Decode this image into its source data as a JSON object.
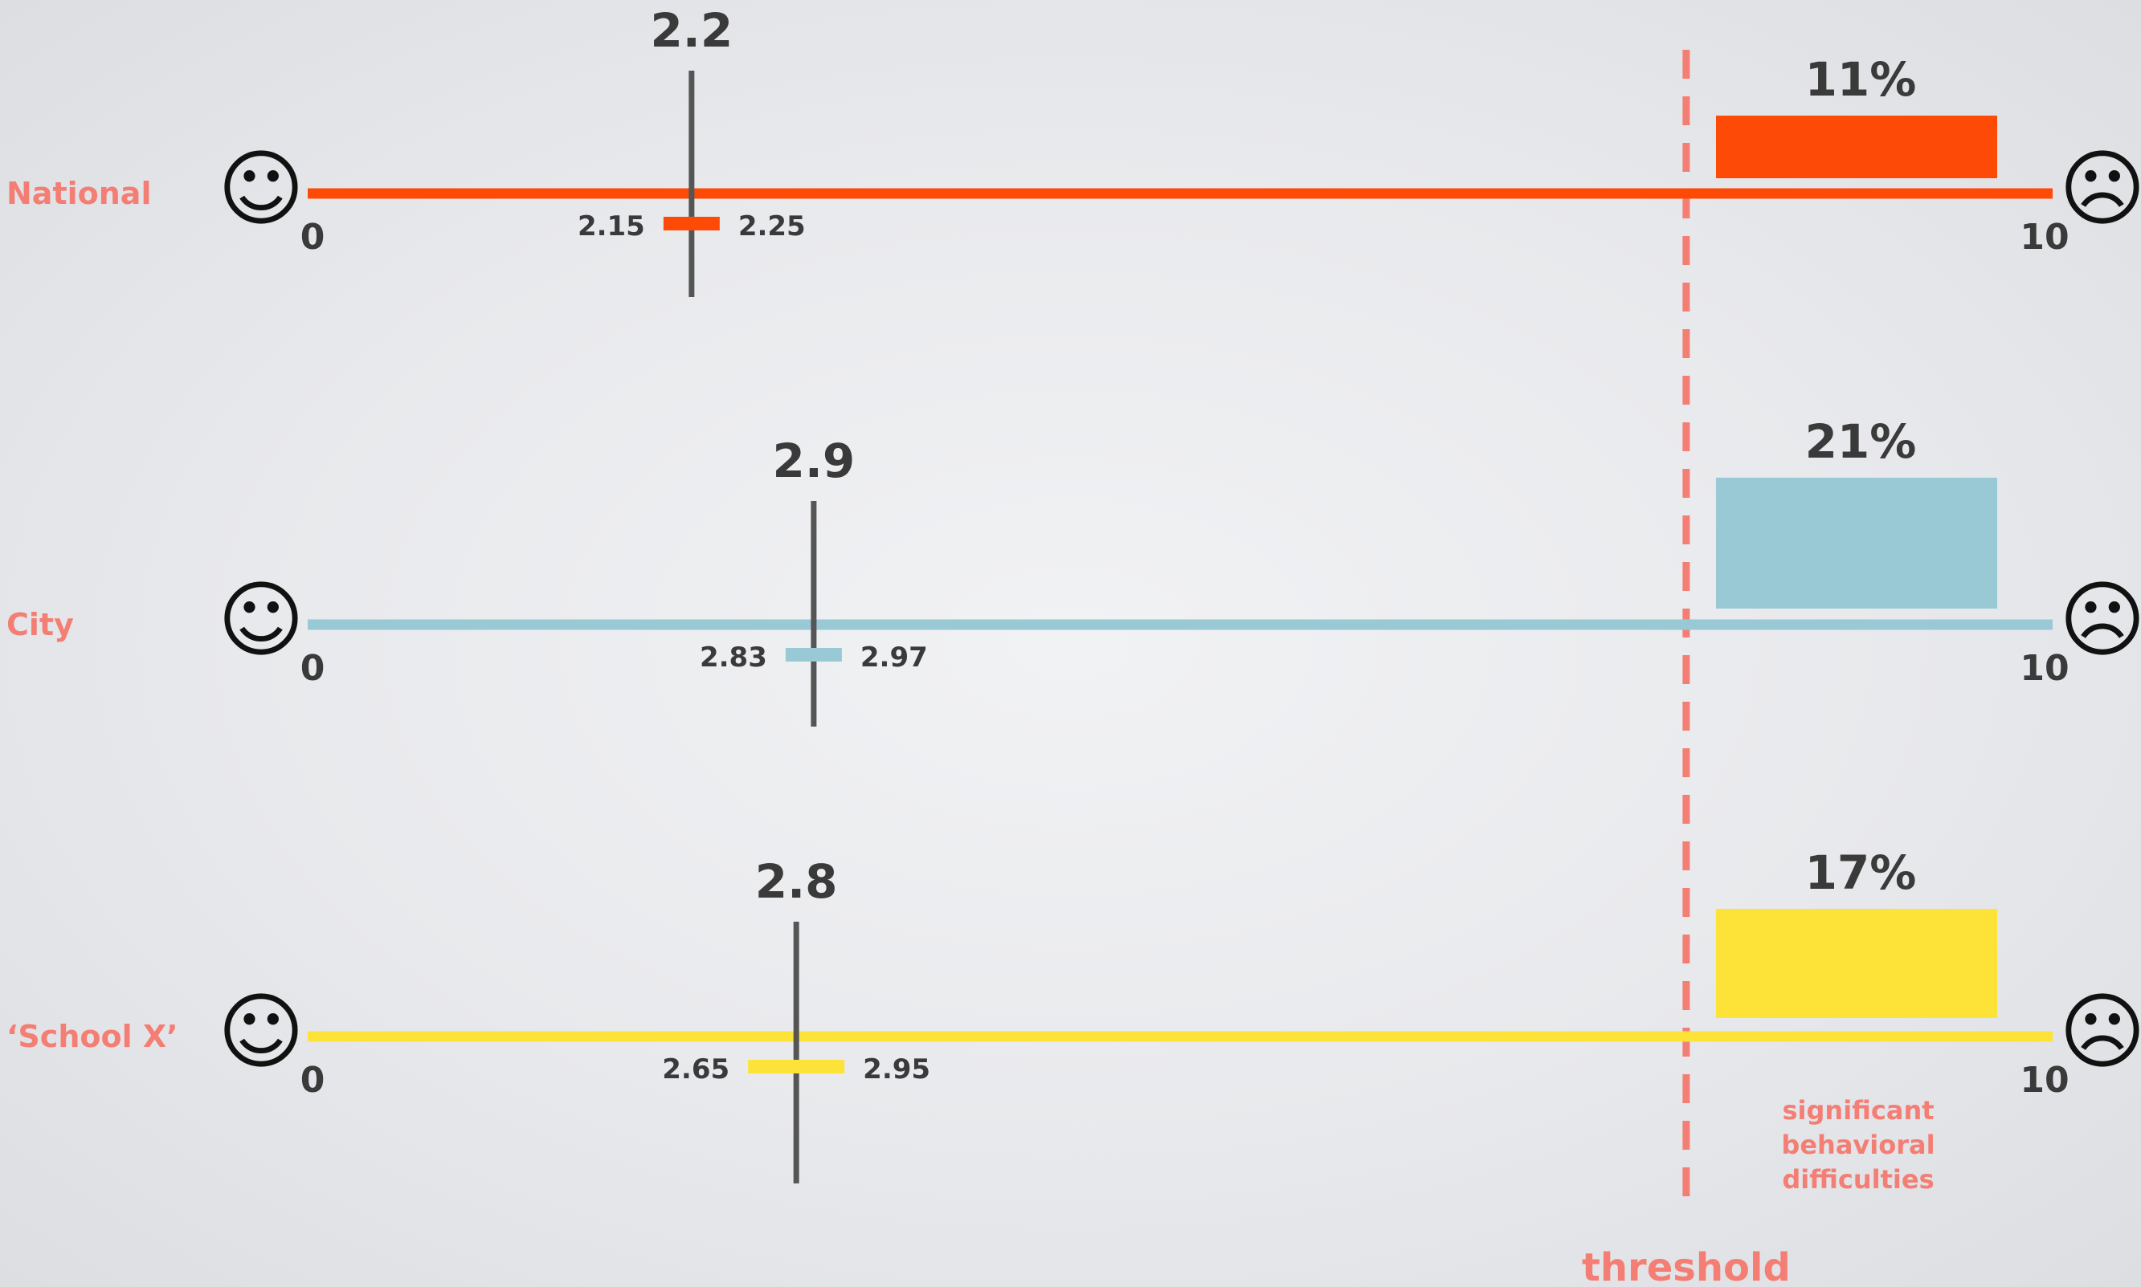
{
  "chart_data": {
    "type": "dot-interval",
    "xlim": [
      0,
      10
    ],
    "axis_min_label": "0",
    "axis_max_label": "10",
    "left_face": "☺",
    "right_face": "☹",
    "threshold_label": "threshold",
    "threshold_note": [
      "significant",
      "behavioral",
      "difficulties"
    ],
    "label_color": "#f47e74",
    "threshold_color": "#f47e74",
    "threshold_value": 7.9,
    "rows": [
      {
        "label": "National",
        "color": "#fe4a07",
        "mean": 2.2,
        "mean_label": "2.2",
        "ci": [
          2.15,
          2.25
        ],
        "ci_labels": [
          "2.15",
          "2.25"
        ],
        "pct": 11,
        "pct_label": "11%"
      },
      {
        "label": "City",
        "color": "#98c9d5",
        "mean": 2.9,
        "mean_label": "2.9",
        "ci": [
          2.83,
          2.97
        ],
        "ci_labels": [
          "2.83",
          "2.97"
        ],
        "pct": 21,
        "pct_label": "21%"
      },
      {
        "label": "‘School X’",
        "color": "#fde337",
        "mean": 2.8,
        "mean_label": "2.8",
        "ci": [
          2.65,
          2.95
        ],
        "ci_labels": [
          "2.65",
          "2.95"
        ],
        "pct": 17,
        "pct_label": "17%"
      }
    ]
  }
}
